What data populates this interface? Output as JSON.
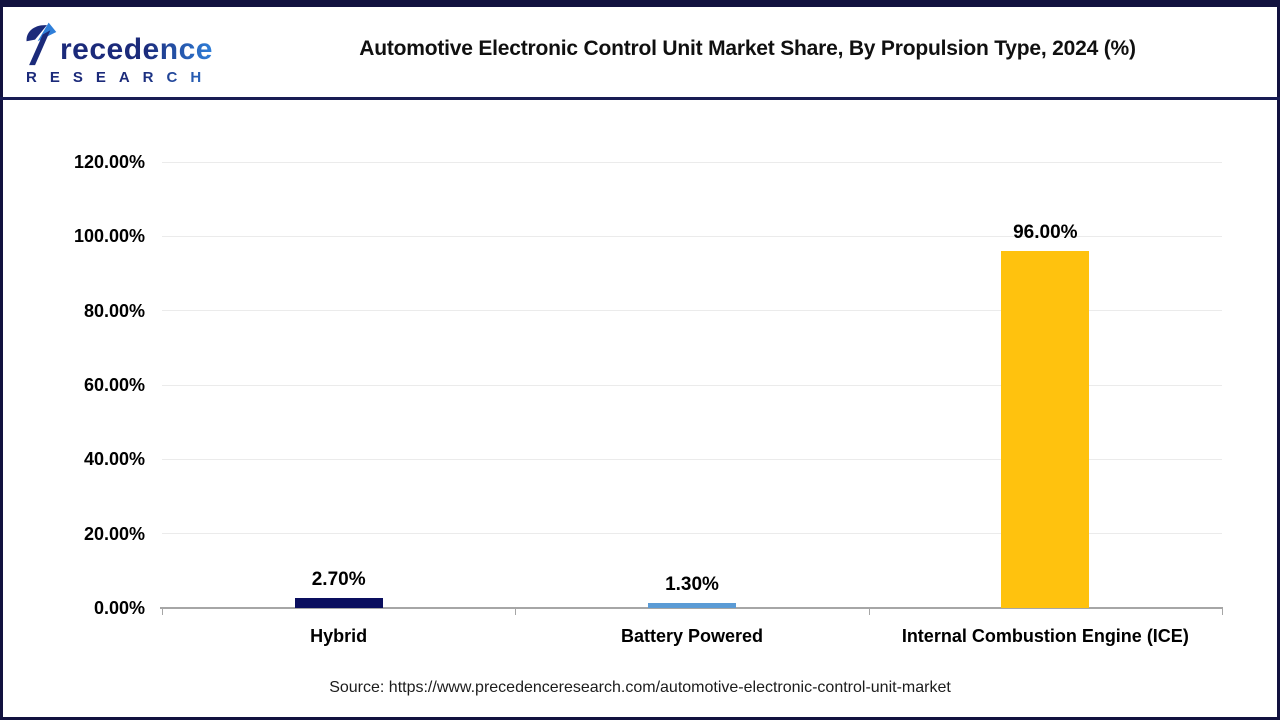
{
  "header": {
    "logo": {
      "brand": "Precedence",
      "brand_rest": "recedence",
      "subtext": "RESEARCH",
      "colors": {
        "navy": "#1B2A7A",
        "blue": "#2F7FD9"
      }
    },
    "title": "Automotive Electronic Control Unit Market Share, By Propulsion Type, 2024 (%)"
  },
  "chart_data": {
    "type": "bar",
    "title": "Automotive Electronic Control Unit Market Share, By Propulsion Type, 2024 (%)",
    "categories": [
      "Hybrid",
      "Battery Powered",
      "Internal Combustion Engine (ICE)"
    ],
    "values": [
      2.7,
      1.3,
      96.0
    ],
    "data_labels": [
      "2.70%",
      "1.30%",
      "96.00%"
    ],
    "bar_colors": [
      "#0A0E5E",
      "#5B9BD5",
      "#FFC20E"
    ],
    "xlabel": "",
    "ylabel": "",
    "ylim": [
      0,
      120
    ],
    "ytick_step": 20,
    "ytick_labels": [
      "0.00%",
      "20.00%",
      "40.00%",
      "60.00%",
      "80.00%",
      "100.00%",
      "120.00%"
    ],
    "grid": true,
    "legend": false
  },
  "footer": {
    "source": "Source: https://www.precedenceresearch.com/automotive-electronic-control-unit-market"
  }
}
